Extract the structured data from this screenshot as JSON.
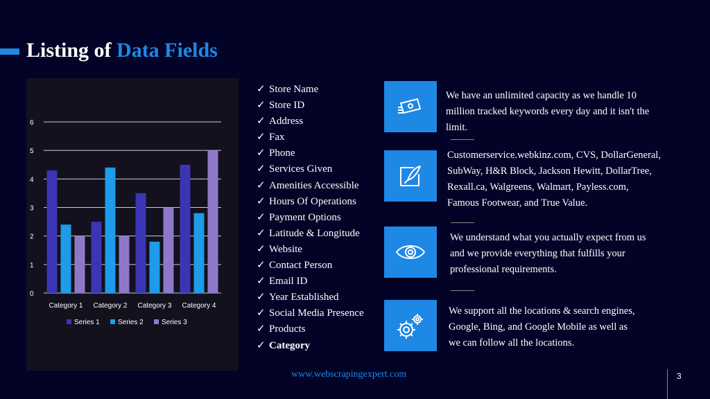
{
  "title": {
    "part1": "Listing of ",
    "part2": "Data Fields"
  },
  "colors": {
    "background": "#020327",
    "accent": "#1e88e5",
    "series1": "#3b35b5",
    "series2": "#1e9be9",
    "series3": "#8e79c9"
  },
  "chart_data": {
    "type": "bar",
    "categories": [
      "Category 1",
      "Category 2",
      "Category 3",
      "Category 4"
    ],
    "series": [
      {
        "name": "Series 1",
        "values": [
          4.3,
          2.5,
          3.5,
          4.5
        ]
      },
      {
        "name": "Series 2",
        "values": [
          2.4,
          4.4,
          1.8,
          2.8
        ]
      },
      {
        "name": "Series 3",
        "values": [
          2,
          2,
          3,
          5
        ]
      }
    ],
    "yticks": [
      "0",
      "1",
      "2",
      "3",
      "4",
      "5",
      "6"
    ],
    "ylim": [
      0,
      6
    ],
    "grid": true,
    "legend": "bottom"
  },
  "fields": [
    {
      "label": "Store Name",
      "bold": false
    },
    {
      "label": "Store ID",
      "bold": false
    },
    {
      "label": "Address",
      "bold": false
    },
    {
      "label": "Fax",
      "bold": false
    },
    {
      "label": "Phone",
      "bold": false
    },
    {
      "label": "Services Given",
      "bold": false
    },
    {
      "label": "Amenities Accessible",
      "bold": false
    },
    {
      "label": "Hours Of Operations",
      "bold": false
    },
    {
      "label": "Payment Options",
      "bold": false
    },
    {
      "label": "Latitude & Longitude",
      "bold": false
    },
    {
      "label": "Website",
      "bold": false
    },
    {
      "label": "Contact Person",
      "bold": false
    },
    {
      "label": "Email ID",
      "bold": false
    },
    {
      "label": "Year Established",
      "bold": false
    },
    {
      "label": "Social Media Presence",
      "bold": false
    },
    {
      "label": "Products",
      "bold": false
    },
    {
      "label": "Category",
      "bold": true
    }
  ],
  "features": [
    {
      "icon": "money-transfer-icon",
      "lines": [
        "We have an unlimited capacity as we handle 10",
        "million tracked keywords every day and it isn't the",
        "limit."
      ]
    },
    {
      "icon": "feather-pen-icon",
      "lines": [
        "Customerservice.webkinz.com, CVS, DollarGeneral,",
        "SubWay, H&R Block, Jackson Hewitt, DollarTree,",
        "Rexall.ca, Walgreens, Walmart, Payless.com,",
        "Famous Footwear, and True Value."
      ]
    },
    {
      "icon": "eye-icon",
      "lines": [
        "We understand what you actually expect from us",
        "and we provide everything that fulfills your",
        "professional requirements."
      ]
    },
    {
      "icon": "gears-icon",
      "lines": [
        "We support all the locations & search engines,",
        "Google, Bing, and Google Mobile as well as",
        "we can follow all the locations."
      ]
    }
  ],
  "footer": {
    "url": "www.webscrapingexpert.com",
    "page": "3"
  }
}
